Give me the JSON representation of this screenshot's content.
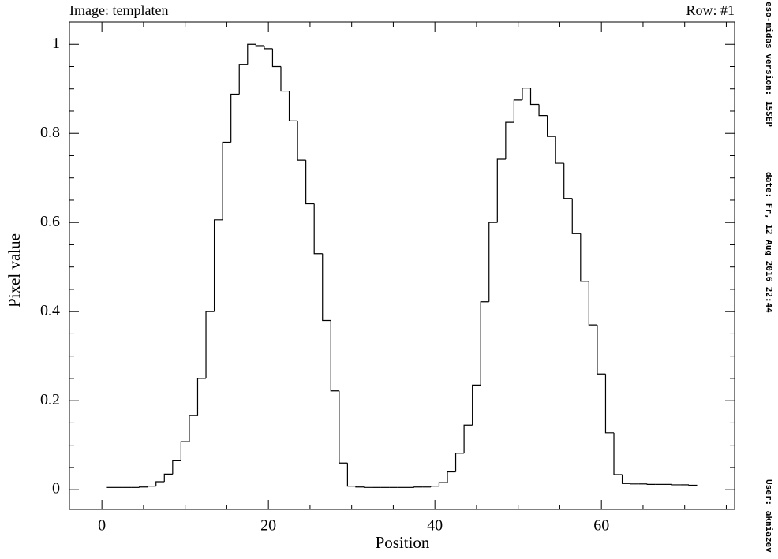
{
  "chart_data": {
    "type": "step",
    "image_label": "Image: templaten",
    "row_label": "Row: #1",
    "x_label": "Position",
    "y_label": "Pixel value",
    "side_texts": [
      "eso-midas version: 15SEP",
      "date: Fr, 12 Aug 2016 22:44",
      "User: akniazev"
    ],
    "x": [
      1,
      2,
      3,
      4,
      5,
      6,
      7,
      8,
      9,
      10,
      11,
      12,
      13,
      14,
      15,
      16,
      17,
      18,
      19,
      20,
      21,
      22,
      23,
      24,
      25,
      26,
      27,
      28,
      29,
      30,
      31,
      32,
      33,
      34,
      35,
      36,
      37,
      38,
      39,
      40,
      41,
      42,
      43,
      44,
      45,
      46,
      47,
      48,
      49,
      50,
      51,
      52,
      53,
      54,
      55,
      56,
      57,
      58,
      59,
      60,
      61,
      62,
      63,
      64,
      65,
      66,
      67,
      68,
      69,
      70,
      71
    ],
    "values": [
      0.005,
      0.005,
      0.005,
      0.005,
      0.006,
      0.008,
      0.018,
      0.035,
      0.065,
      0.108,
      0.167,
      0.25,
      0.4,
      0.606,
      0.78,
      0.888,
      0.955,
      1.0,
      0.997,
      0.99,
      0.95,
      0.895,
      0.828,
      0.74,
      0.642,
      0.53,
      0.38,
      0.222,
      0.06,
      0.008,
      0.006,
      0.005,
      0.005,
      0.005,
      0.005,
      0.005,
      0.005,
      0.006,
      0.006,
      0.008,
      0.016,
      0.04,
      0.082,
      0.145,
      0.235,
      0.422,
      0.6,
      0.742,
      0.825,
      0.875,
      0.902,
      0.865,
      0.84,
      0.793,
      0.733,
      0.654,
      0.575,
      0.468,
      0.37,
      0.26,
      0.128,
      0.034,
      0.014,
      0.013,
      0.013,
      0.012,
      0.012,
      0.012,
      0.011,
      0.011,
      0.01
    ],
    "color": "#000000",
    "xlim": [
      -3.9,
      76
    ],
    "ylim": [
      -0.044,
      1.05
    ],
    "xticks": [
      0,
      20,
      40,
      60
    ],
    "yticks": [
      0,
      0.2,
      0.4,
      0.6,
      0.8,
      1
    ],
    "xminorticks": [
      5,
      10,
      15,
      25,
      30,
      35,
      45,
      50,
      55,
      65,
      70,
      75
    ],
    "yminorticks": [
      0.05,
      0.1,
      0.15,
      0.25,
      0.3,
      0.35,
      0.45,
      0.5,
      0.55,
      0.65,
      0.7,
      0.75,
      0.85,
      0.9,
      0.95
    ]
  }
}
